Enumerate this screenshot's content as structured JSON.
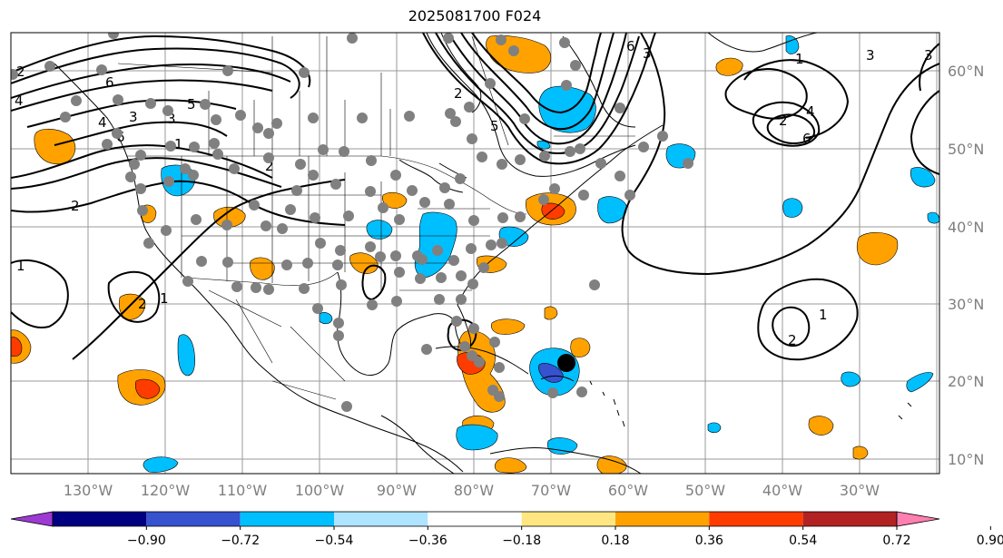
{
  "title": "2025081700 F024",
  "lon_labels": [
    "130°W",
    "120°W",
    "110°W",
    "100°W",
    "90°W",
    "80°W",
    "70°W",
    "60°W",
    "50°W",
    "40°W",
    "30°W"
  ],
  "lat_labels": [
    "60°N",
    "50°N",
    "40°N",
    "30°N",
    "20°N",
    "10°N"
  ],
  "colorbar": {
    "ticks": [
      "−0.90",
      "−0.72",
      "−0.54",
      "−0.36",
      "−0.18",
      "0.18",
      "0.36",
      "0.54",
      "0.72",
      "0.90"
    ],
    "colors": [
      "#9c3ad3",
      "#000080",
      "#3652cf",
      "#00bfff",
      "#aee4ff",
      "#ffffff",
      "#ffe680",
      "#ffa200",
      "#ff3c00",
      "#b22222",
      "#ff7fb0"
    ]
  },
  "contour_labels": [
    "2",
    "4",
    "6",
    "5",
    "3",
    "3",
    "4",
    "6",
    "1",
    "2",
    "2",
    "1",
    "2",
    "1",
    "2",
    "3",
    "5",
    "6",
    "1",
    "3",
    "4",
    "6",
    "2",
    "1",
    "2",
    "3"
  ],
  "colors": {
    "orange": "#ffa200",
    "red": "#ff3c00",
    "blue": "#00bfff",
    "light_blue": "#aee4ff",
    "royal_blue": "#3652cf",
    "station_dot": "#808080",
    "storm_center": "#000000"
  }
}
